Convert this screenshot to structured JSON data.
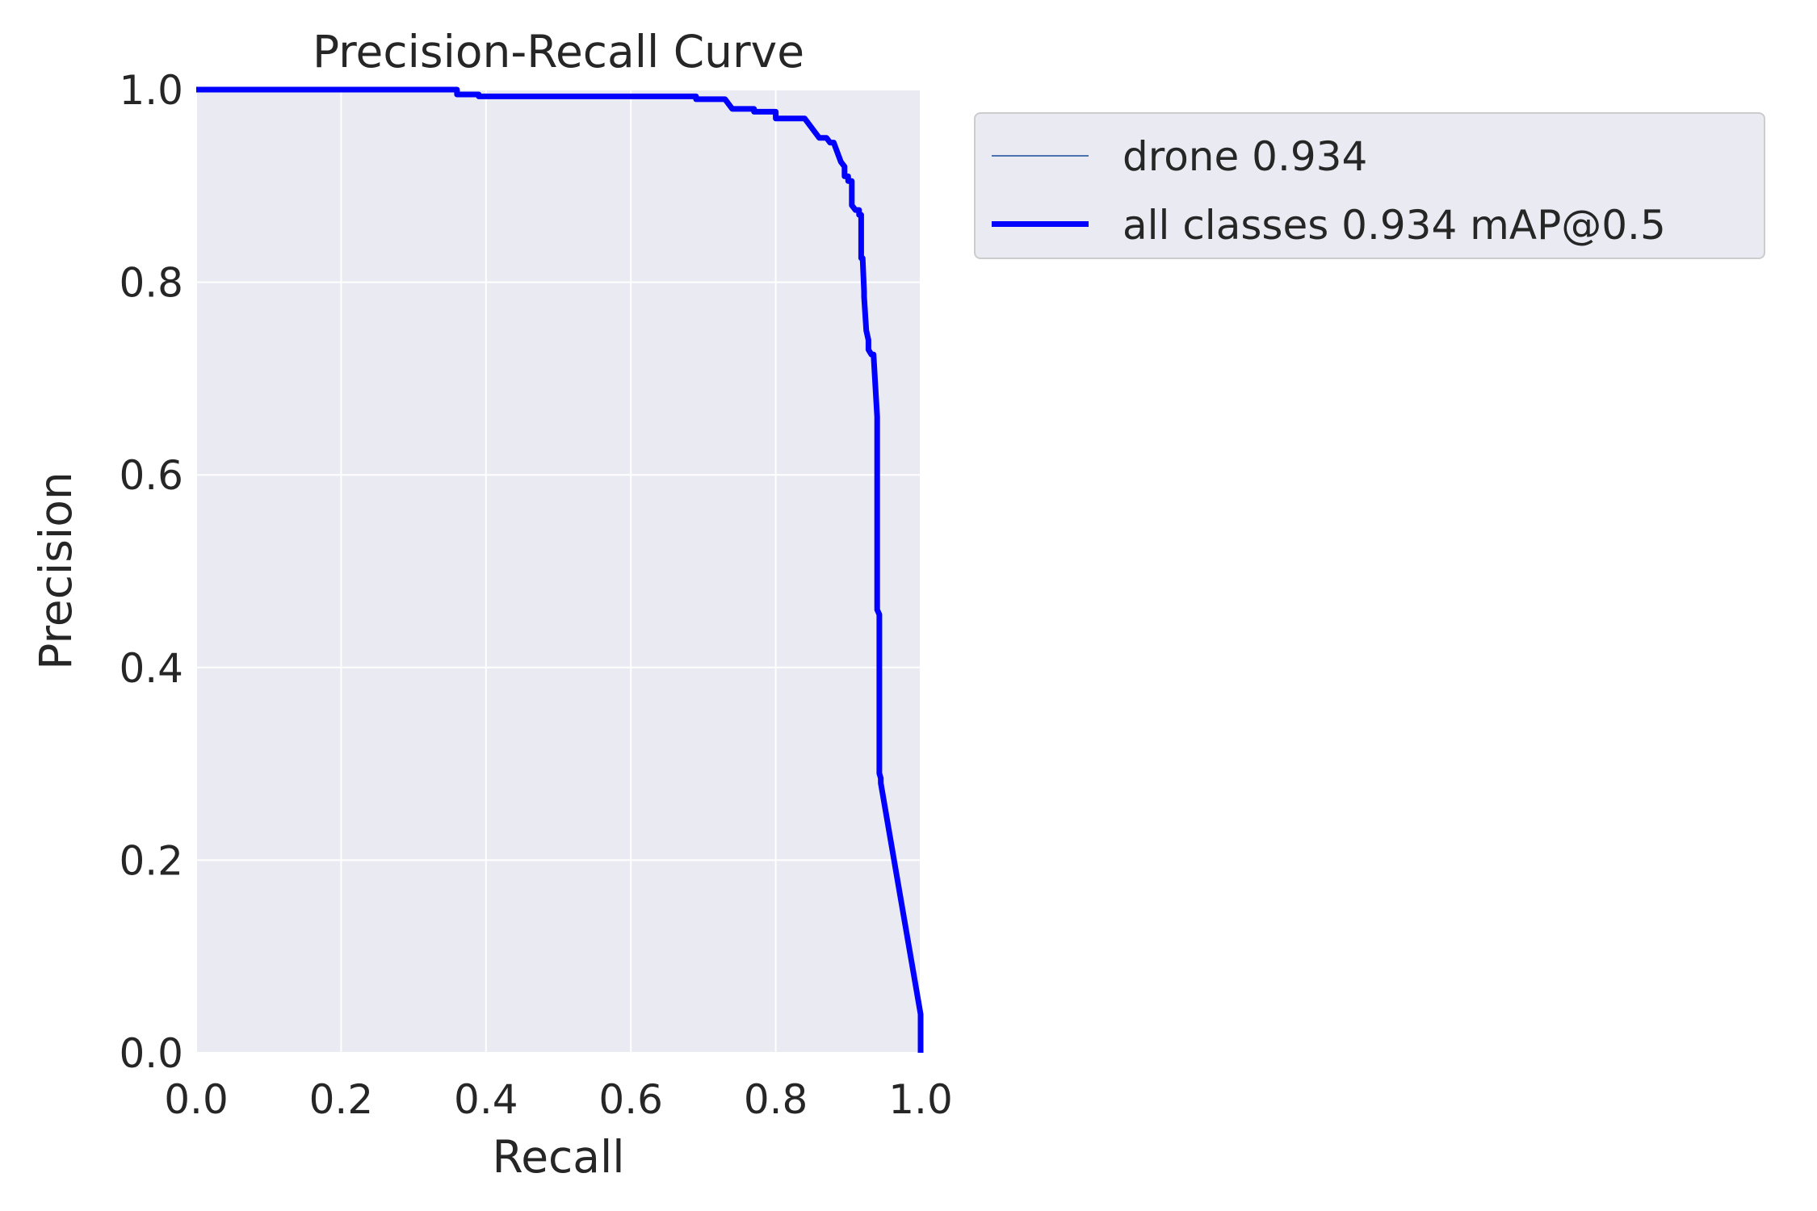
{
  "chart_data": {
    "type": "line",
    "title": "Precision-Recall Curve",
    "xlabel": "Recall",
    "ylabel": "Precision",
    "xlim": [
      0,
      1
    ],
    "ylim": [
      0,
      1
    ],
    "xticks": [
      "0.0",
      "0.2",
      "0.4",
      "0.6",
      "0.8",
      "1.0"
    ],
    "yticks": [
      "0.0",
      "0.2",
      "0.4",
      "0.6",
      "0.8",
      "1.0"
    ],
    "grid": true,
    "legend_position": "outside-upper-right",
    "background": "#eaeaf2",
    "series": [
      {
        "name": "drone 0.934",
        "color": "#4c72b0",
        "linewidth": "thin",
        "x": [
          0,
          0.36,
          0.36,
          0.39,
          0.39,
          0.69,
          0.69,
          0.73,
          0.74,
          0.77,
          0.77,
          0.8,
          0.8,
          0.84,
          0.85,
          0.86,
          0.87,
          0.875,
          0.88,
          0.885,
          0.89,
          0.895,
          0.895,
          0.9,
          0.9,
          0.905,
          0.905,
          0.91,
          0.915,
          0.915,
          0.918,
          0.918,
          0.92,
          0.922,
          0.922,
          0.925,
          0.928,
          0.928,
          0.932,
          0.935,
          0.94,
          0.94,
          0.943,
          0.943,
          0.945,
          0.945,
          1.0,
          1.0
        ],
        "y": [
          1.0,
          1.0,
          0.995,
          0.995,
          0.993,
          0.993,
          0.99,
          0.99,
          0.98,
          0.98,
          0.977,
          0.977,
          0.97,
          0.97,
          0.96,
          0.95,
          0.95,
          0.945,
          0.945,
          0.935,
          0.925,
          0.92,
          0.91,
          0.91,
          0.905,
          0.905,
          0.88,
          0.875,
          0.875,
          0.87,
          0.87,
          0.825,
          0.825,
          0.79,
          0.785,
          0.75,
          0.74,
          0.73,
          0.725,
          0.725,
          0.66,
          0.46,
          0.455,
          0.29,
          0.285,
          0.28,
          0.04,
          0.0
        ]
      },
      {
        "name": "all classes 0.934 mAP@0.5",
        "color": "#0000ff",
        "linewidth": "thick",
        "x": [
          0,
          0.36,
          0.36,
          0.39,
          0.39,
          0.69,
          0.69,
          0.73,
          0.74,
          0.77,
          0.77,
          0.8,
          0.8,
          0.84,
          0.85,
          0.86,
          0.87,
          0.875,
          0.88,
          0.885,
          0.89,
          0.895,
          0.895,
          0.9,
          0.9,
          0.905,
          0.905,
          0.91,
          0.915,
          0.915,
          0.918,
          0.918,
          0.92,
          0.922,
          0.922,
          0.925,
          0.928,
          0.928,
          0.932,
          0.935,
          0.94,
          0.94,
          0.943,
          0.943,
          0.945,
          0.945,
          1.0,
          1.0
        ],
        "y": [
          1.0,
          1.0,
          0.995,
          0.995,
          0.993,
          0.993,
          0.99,
          0.99,
          0.98,
          0.98,
          0.977,
          0.977,
          0.97,
          0.97,
          0.96,
          0.95,
          0.95,
          0.945,
          0.945,
          0.935,
          0.925,
          0.92,
          0.91,
          0.91,
          0.905,
          0.905,
          0.88,
          0.875,
          0.875,
          0.87,
          0.87,
          0.825,
          0.825,
          0.79,
          0.785,
          0.75,
          0.74,
          0.73,
          0.725,
          0.725,
          0.66,
          0.46,
          0.455,
          0.29,
          0.285,
          0.28,
          0.04,
          0.0
        ]
      }
    ]
  }
}
